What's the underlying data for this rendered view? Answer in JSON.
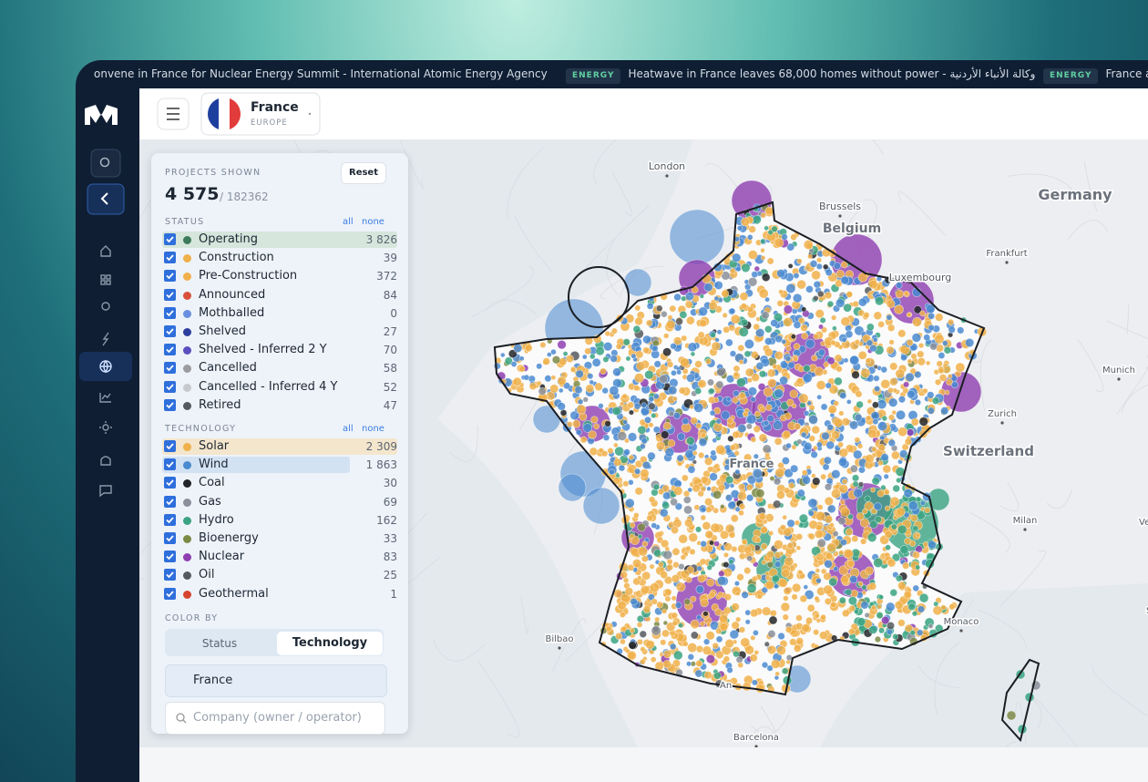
{
  "ticker": [
    {
      "text": "onvene in France for Nuclear Energy Summit - International Atomic Energy Agency"
    },
    {
      "tag": "ENERGY",
      "text": "Heatwave in France leaves 68,000 homes without power - وكالة الأنباء الأردنية"
    },
    {
      "tag": "ENERGY",
      "text": "France acc"
    }
  ],
  "header": {
    "country": "France",
    "region": "EUROPE"
  },
  "panel": {
    "projects_label": "PROJECTS SHOWN",
    "reset": "Reset",
    "shown": "4 575",
    "total": "/ 182362",
    "status": {
      "title": "STATUS",
      "all": "all",
      "none": "none",
      "items": [
        {
          "label": "Operating",
          "count": "3 826",
          "color": "#3d7a5c"
        },
        {
          "label": "Construction",
          "count": "39",
          "color": "#f0b04a"
        },
        {
          "label": "Pre-Construction",
          "count": "372",
          "color": "#f0b04a"
        },
        {
          "label": "Announced",
          "count": "84",
          "color": "#d9503a"
        },
        {
          "label": "Mothballed",
          "count": "0",
          "color": "#6a8fe0"
        },
        {
          "label": "Shelved",
          "count": "27",
          "color": "#2d3e9e"
        },
        {
          "label": "Shelved - Inferred 2 Y",
          "count": "70",
          "color": "#5a4fc0"
        },
        {
          "label": "Cancelled",
          "count": "58",
          "color": "#9a9ca0"
        },
        {
          "label": "Cancelled - Inferred 4 Y",
          "count": "52",
          "color": "#c8c9cc"
        },
        {
          "label": "Retired",
          "count": "47",
          "color": "#55585d"
        }
      ]
    },
    "technology": {
      "title": "TECHNOLOGY",
      "all": "all",
      "none": "none",
      "items": [
        {
          "label": "Solar",
          "count": "2 309",
          "color": "#f0b04a"
        },
        {
          "label": "Wind",
          "count": "1 863",
          "color": "#4a8ad0"
        },
        {
          "label": "Coal",
          "count": "30",
          "color": "#222428"
        },
        {
          "label": "Gas",
          "count": "69",
          "color": "#8a8f99"
        },
        {
          "label": "Hydro",
          "count": "162",
          "color": "#3aa381"
        },
        {
          "label": "Bioenergy",
          "count": "33",
          "color": "#7d8a45"
        },
        {
          "label": "Nuclear",
          "count": "83",
          "color": "#8e3fb0"
        },
        {
          "label": "Oil",
          "count": "25",
          "color": "#55595f"
        },
        {
          "label": "Geothermal",
          "count": "1",
          "color": "#d6452f"
        }
      ]
    },
    "color_by": {
      "title": "COLOR BY",
      "options": [
        "Status",
        "Technology"
      ]
    },
    "country_field": "France",
    "company_placeholder": "Company (owner / operator)"
  },
  "map": {
    "labels": [
      {
        "text": "London"
      },
      {
        "text": "Brussels"
      },
      {
        "text": "Belgium"
      },
      {
        "text": "Germany"
      },
      {
        "text": "Frankfurt"
      },
      {
        "text": "Luxembourg"
      },
      {
        "text": "Munich"
      },
      {
        "text": "Zurich"
      },
      {
        "text": "Switzerland"
      },
      {
        "text": "Milan"
      },
      {
        "text": "Ver"
      },
      {
        "text": "France"
      },
      {
        "text": "Bilbao"
      },
      {
        "text": "Monaco"
      },
      {
        "text": "San M"
      },
      {
        "text": "Barcelona"
      },
      {
        "text": "An"
      }
    ]
  }
}
